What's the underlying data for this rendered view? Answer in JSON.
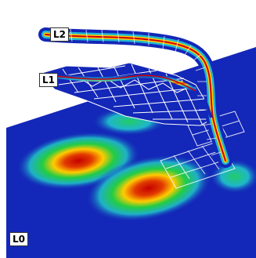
{
  "levels": [
    {
      "id": "L0",
      "label": "L0"
    },
    {
      "id": "L1",
      "label": "L1"
    },
    {
      "id": "L2",
      "label": "L2"
    }
  ],
  "colors": {
    "base_blue": "#1327b8",
    "grid_line": "#ffffff",
    "hot": "#d40000",
    "warm": "#ffd400",
    "mid": "#14c850",
    "cool": "#1cb6d8"
  }
}
